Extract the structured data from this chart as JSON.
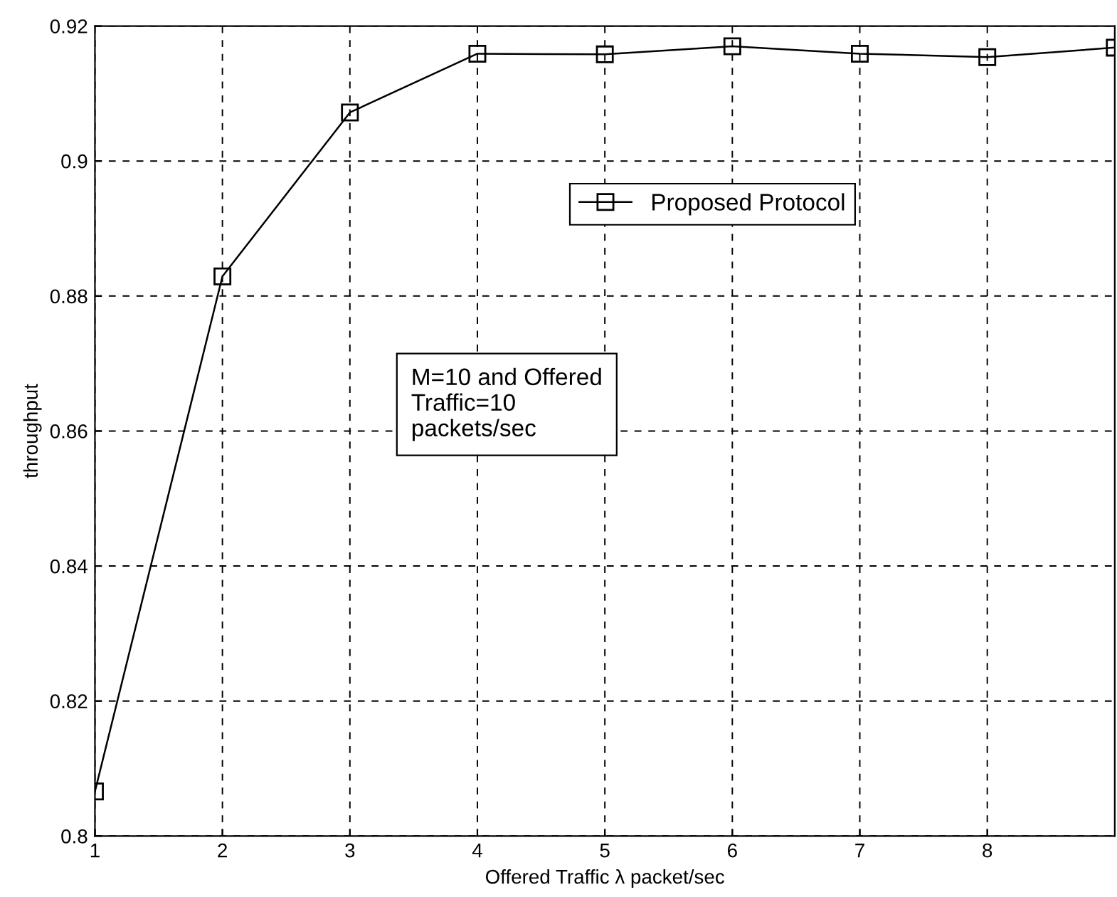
{
  "chart_data": {
    "type": "line",
    "xlabel": "Offered Traffic λ packet/sec",
    "ylabel": "throughput",
    "x": [
      1,
      2,
      3,
      4,
      5,
      6,
      7,
      8,
      9
    ],
    "series": [
      {
        "name": "Proposed Protocol",
        "color": "#000000",
        "values": [
          0.8066,
          0.8829,
          0.9072,
          0.9159,
          0.9158,
          0.917,
          0.9159,
          0.9154,
          0.9168
        ]
      }
    ],
    "xlim": [
      1,
      9
    ],
    "xticks": [
      1,
      2,
      3,
      4,
      5,
      6,
      7,
      8
    ],
    "ylim": [
      0.8,
      0.92
    ],
    "yticks": [
      0.8,
      0.82,
      0.84,
      0.86,
      0.88,
      0.9,
      0.92
    ],
    "grid": true,
    "legend": "top right",
    "marker": "square",
    "line_style": "solid",
    "annotations": [
      "M=10 and Offered\nTraffic=10\npackets/sec"
    ]
  }
}
